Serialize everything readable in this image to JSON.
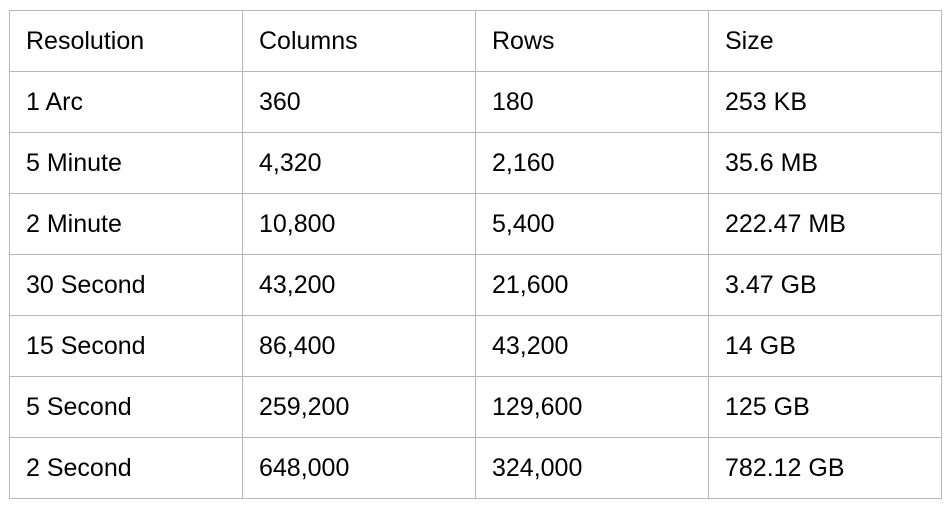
{
  "table": {
    "headers": [
      "Resolution",
      "Columns",
      "Rows",
      "Size"
    ],
    "rows": [
      [
        "1 Arc",
        "360",
        "180",
        "253 KB"
      ],
      [
        "5 Minute",
        "4,320",
        "2,160",
        "35.6 MB"
      ],
      [
        "2 Minute",
        "10,800",
        "5,400",
        "222.47 MB"
      ],
      [
        "30 Second",
        "43,200",
        "21,600",
        "3.47 GB"
      ],
      [
        "15 Second",
        "86,400",
        "43,200",
        "14 GB"
      ],
      [
        "5 Second",
        "259,200",
        "129,600",
        "125 GB"
      ],
      [
        "2 Second",
        "648,000",
        "324,000",
        "782.12 GB"
      ]
    ]
  },
  "colors": {
    "border": "#b7b7b7",
    "text": "#000000",
    "background": "#ffffff"
  }
}
